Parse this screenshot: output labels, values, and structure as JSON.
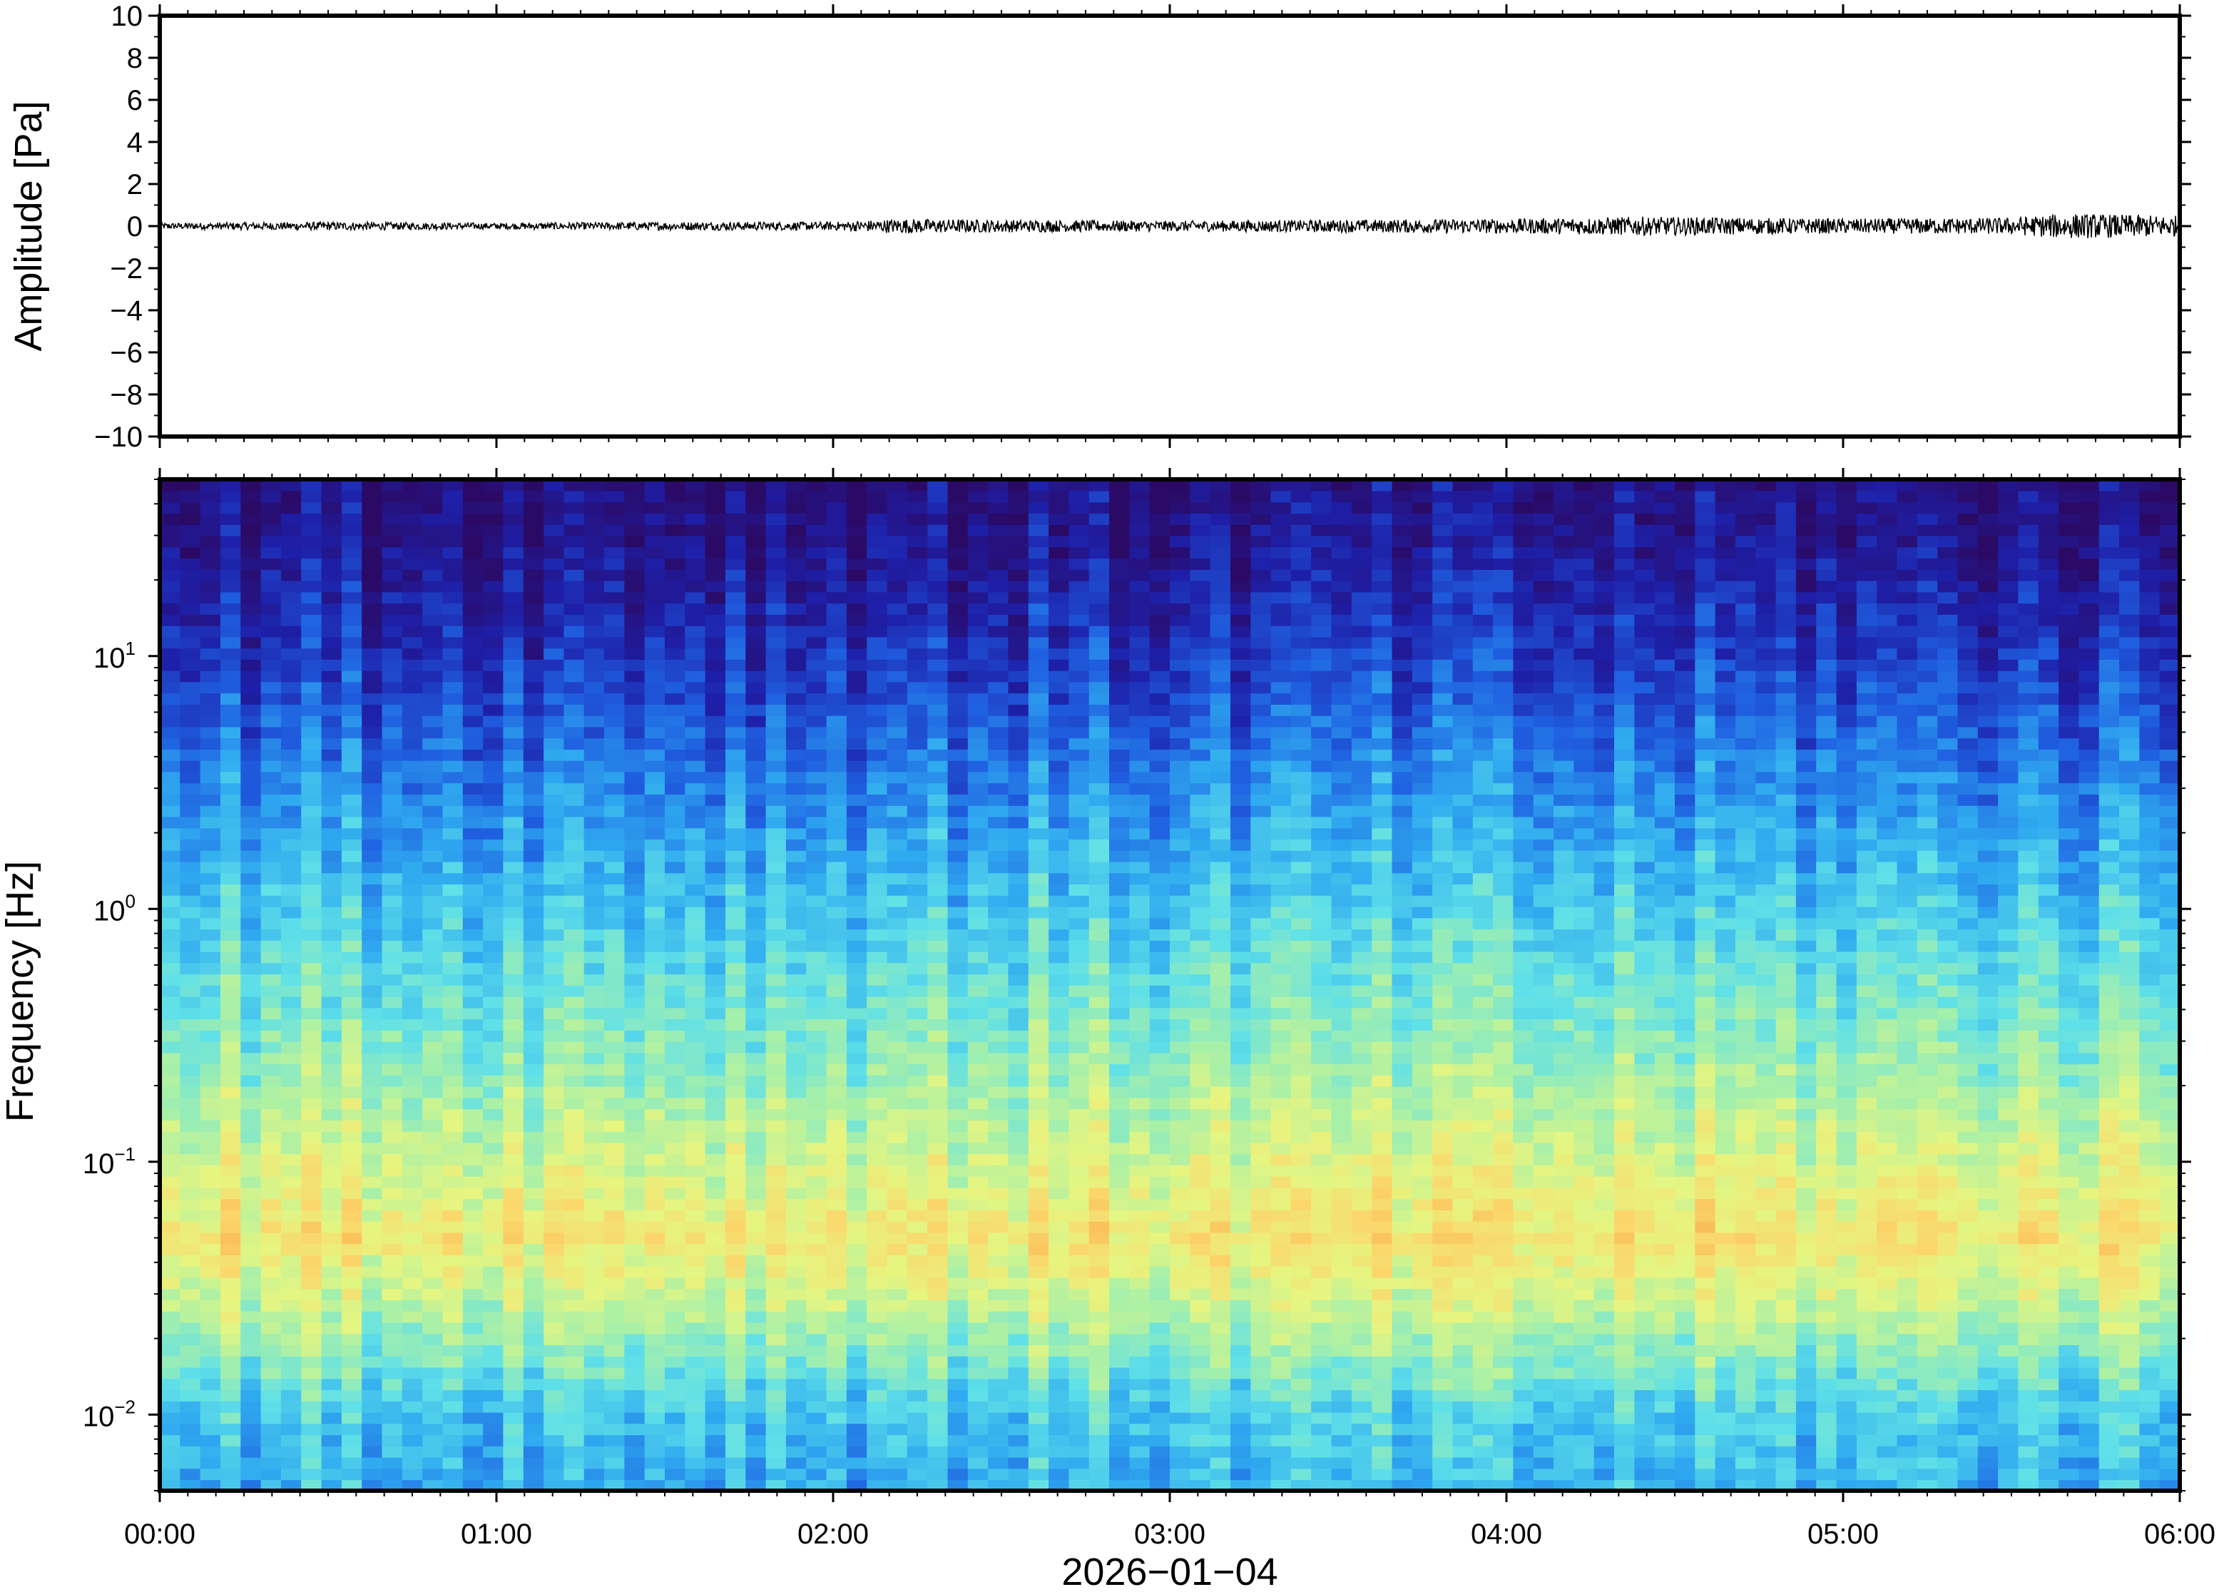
{
  "chart_data": [
    {
      "type": "line",
      "panel": "waveform",
      "ylabel": "Amplitude [Pa]",
      "ylim": [
        -10,
        10
      ],
      "y_ticks": [
        10,
        8,
        6,
        4,
        2,
        0,
        -2,
        -4,
        -6,
        -8,
        -10
      ],
      "y_tick_labels": [
        "10",
        "8",
        "6",
        "4",
        "2",
        "0",
        "−2",
        "−4",
        "−6",
        "−8",
        "−10"
      ],
      "x_range_hours": [
        0,
        6
      ],
      "trace_center": 0,
      "trace_envelope": [
        {
          "t": 0.0,
          "amp": 0.15
        },
        {
          "t": 0.5,
          "amp": 0.2
        },
        {
          "t": 1.0,
          "amp": 0.15
        },
        {
          "t": 1.5,
          "amp": 0.2
        },
        {
          "t": 2.0,
          "amp": 0.2
        },
        {
          "t": 2.2,
          "amp": 0.35
        },
        {
          "t": 2.5,
          "amp": 0.3
        },
        {
          "t": 3.0,
          "amp": 0.25
        },
        {
          "t": 3.5,
          "amp": 0.3
        },
        {
          "t": 4.0,
          "amp": 0.35
        },
        {
          "t": 4.4,
          "amp": 0.45
        },
        {
          "t": 5.0,
          "amp": 0.35
        },
        {
          "t": 5.5,
          "amp": 0.4
        },
        {
          "t": 5.65,
          "amp": 0.6
        },
        {
          "t": 6.0,
          "amp": 0.5
        }
      ],
      "trace_color": "#000000"
    },
    {
      "type": "heatmap",
      "panel": "spectrogram",
      "ylabel": "Frequency [Hz]",
      "y_scale": "log",
      "ylim": [
        0.005,
        50
      ],
      "y_ticks": [
        {
          "base": "10",
          "exp": "−2",
          "value": 0.01
        },
        {
          "base": "10",
          "exp": "−1",
          "value": 0.1
        },
        {
          "base": "10",
          "exp": "0",
          "value": 1
        },
        {
          "base": "10",
          "exp": "1",
          "value": 10
        }
      ],
      "x_range_hours": [
        0,
        6
      ],
      "x_ticks": [
        "00:00",
        "01:00",
        "02:00",
        "03:00",
        "04:00",
        "05:00",
        "06:00"
      ],
      "xlabel": "2026−01−04",
      "colormap": [
        "#2b0a66",
        "#1e1fa8",
        "#1f5fe0",
        "#2fa9f0",
        "#5fe0e8",
        "#a8f0a8",
        "#e6f580",
        "#fbd66b",
        "#f8a94a"
      ],
      "power_profile": [
        {
          "freq": 0.005,
          "level": 0.4
        },
        {
          "freq": 0.01,
          "level": 0.45
        },
        {
          "freq": 0.02,
          "level": 0.62
        },
        {
          "freq": 0.05,
          "level": 0.82
        },
        {
          "freq": 0.1,
          "level": 0.72
        },
        {
          "freq": 0.3,
          "level": 0.58
        },
        {
          "freq": 1,
          "level": 0.45
        },
        {
          "freq": 3,
          "level": 0.33
        },
        {
          "freq": 10,
          "level": 0.18
        },
        {
          "freq": 30,
          "level": 0.08
        },
        {
          "freq": 50,
          "level": 0.05
        }
      ]
    }
  ]
}
